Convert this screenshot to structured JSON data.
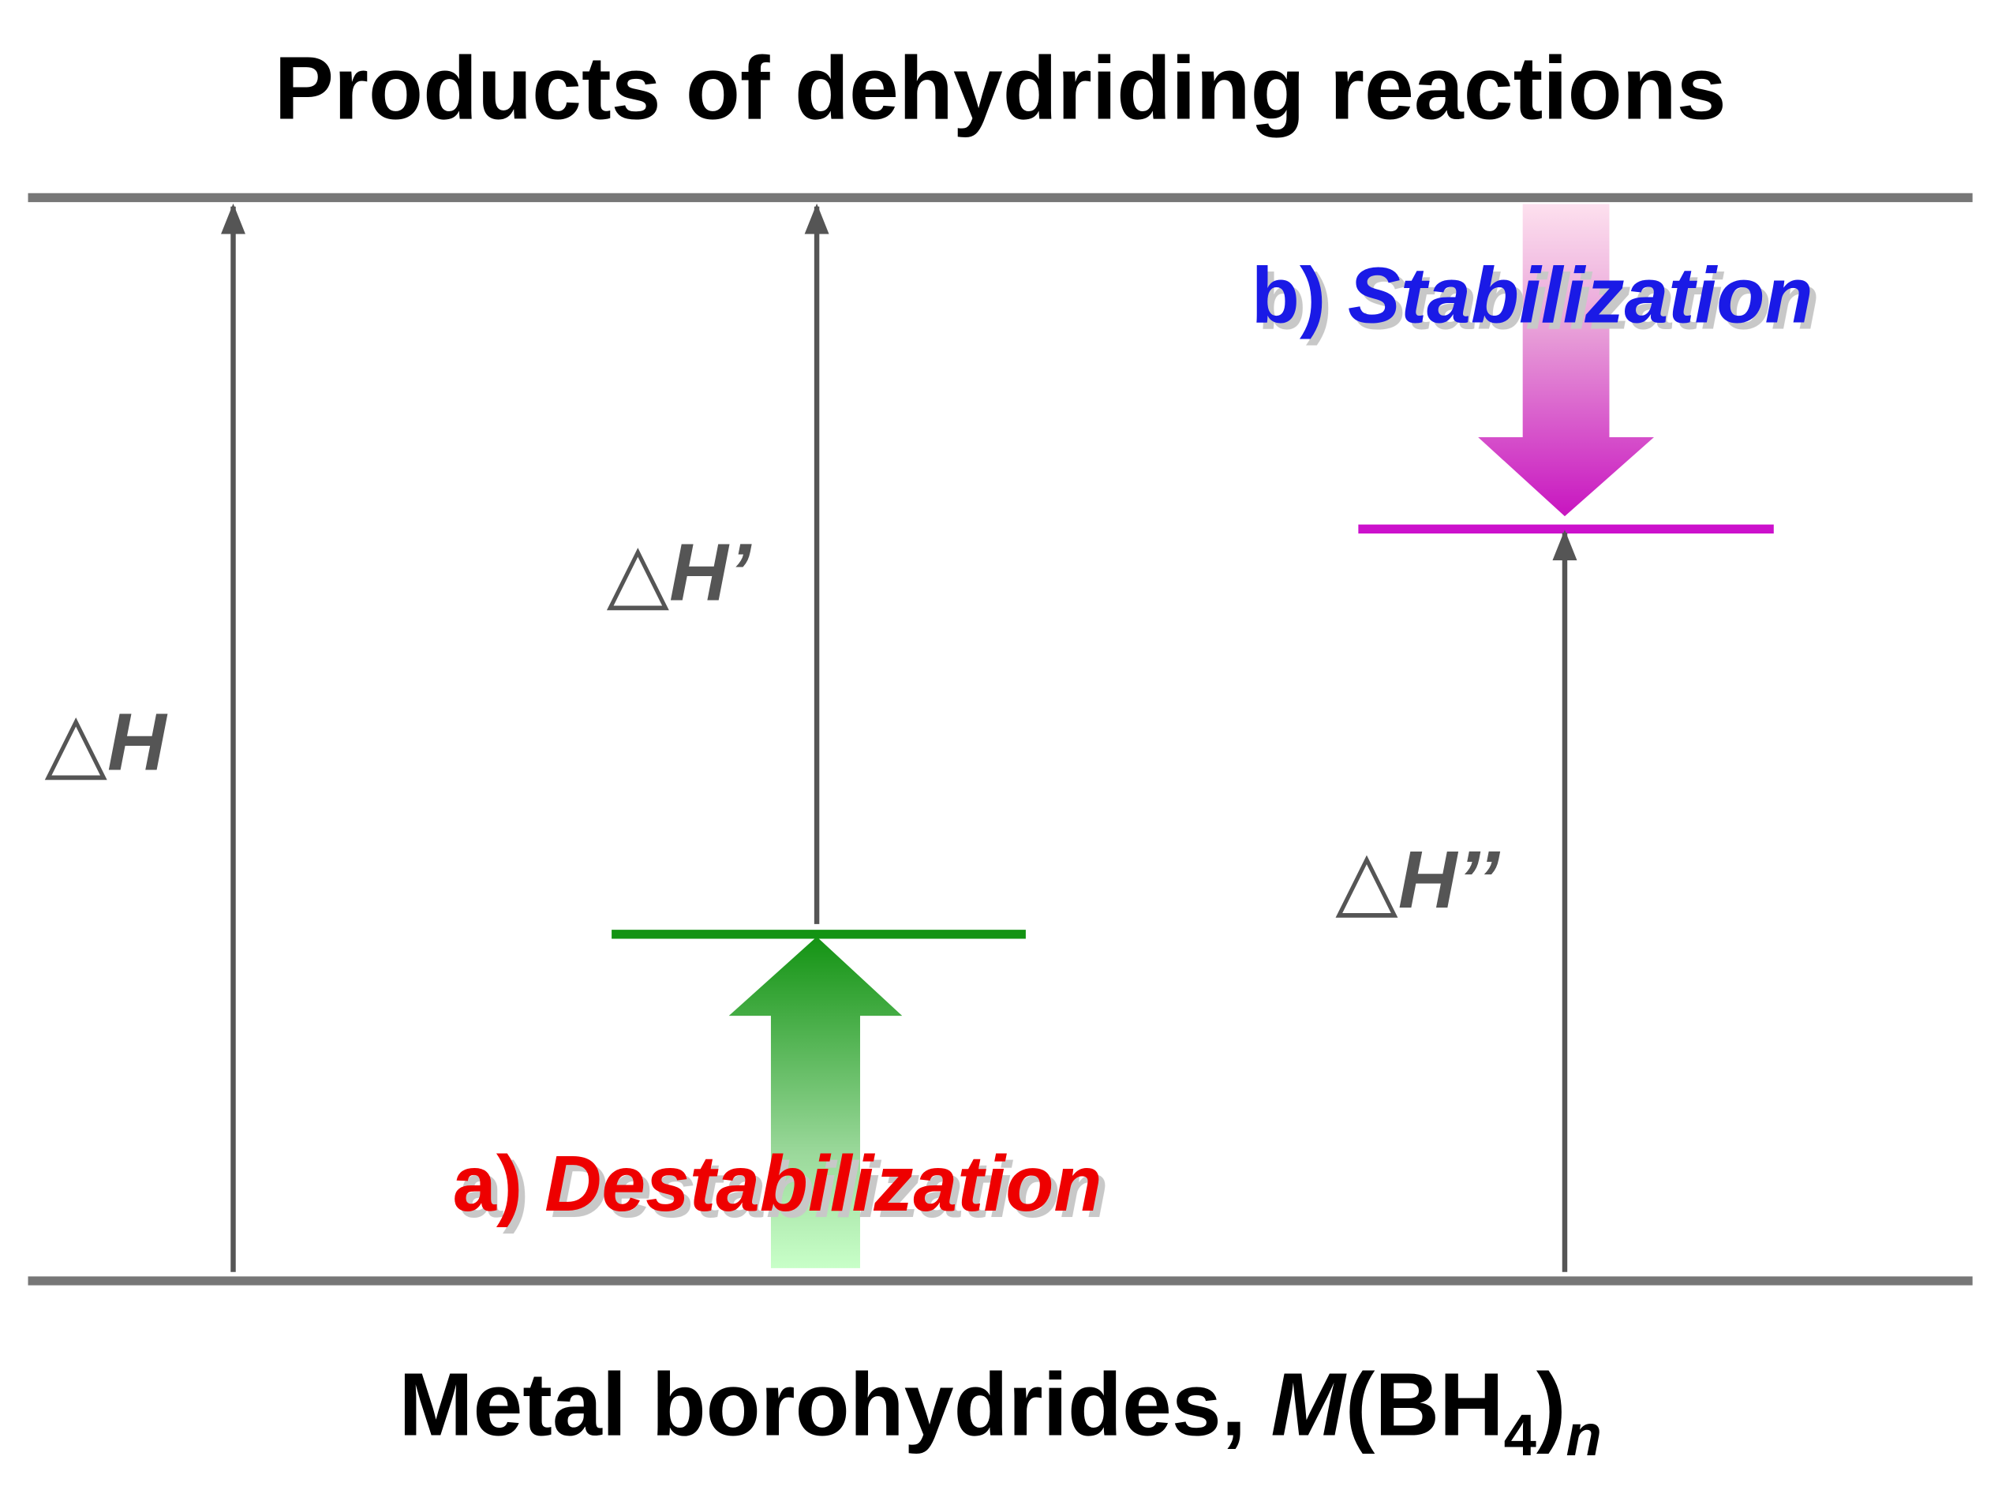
{
  "header": {
    "title": "Products of dehydriding reactions"
  },
  "footer": {
    "text": "Metal borohydrides,",
    "formula": {
      "metal": "M",
      "open": "(BH",
      "subscript": "4",
      "close": ")",
      "index": "n"
    }
  },
  "labels": {
    "dh": "△H",
    "dh_prime": "△H’",
    "dh_double_prime": "△H’’"
  },
  "destabilization": {
    "prefix": "a)",
    "text": "Destabilization"
  },
  "stabilization": {
    "prefix": "b)",
    "text": "Stabilization"
  }
}
